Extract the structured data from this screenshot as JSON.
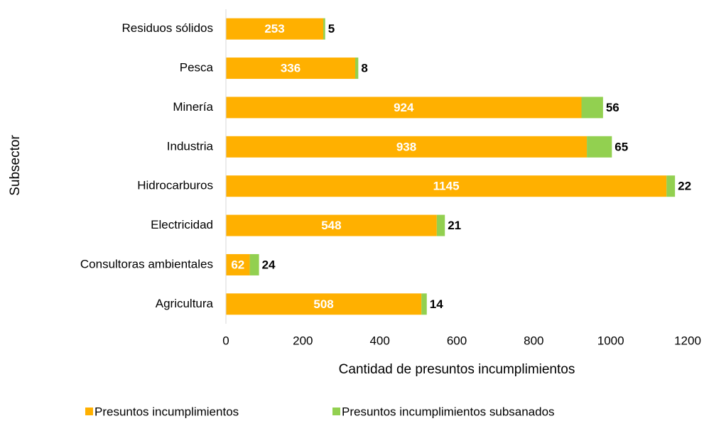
{
  "chart_data": {
    "type": "bar",
    "orientation": "horizontal",
    "stacked": true,
    "categories": [
      "Residuos sólidos",
      "Pesca",
      "Minería",
      "Industria",
      "Hidrocarburos",
      "Electricidad",
      "Consultoras ambientales",
      "Agricultura"
    ],
    "series": [
      {
        "name": "Presuntos incumplimientos",
        "color": "#ffb000",
        "values": [
          253,
          336,
          924,
          938,
          1145,
          548,
          62,
          508
        ]
      },
      {
        "name": "Presuntos incumplimientos subsanados",
        "color": "#92d050",
        "values": [
          5,
          8,
          56,
          65,
          22,
          21,
          24,
          14
        ]
      }
    ],
    "xlabel": "Cantidad de presuntos incumplimientos",
    "ylabel": "Subsector",
    "xlim": [
      0,
      1200
    ],
    "xticks": [
      0,
      200,
      400,
      600,
      800,
      1000,
      1200
    ],
    "grid": false,
    "legend": "bottom"
  }
}
